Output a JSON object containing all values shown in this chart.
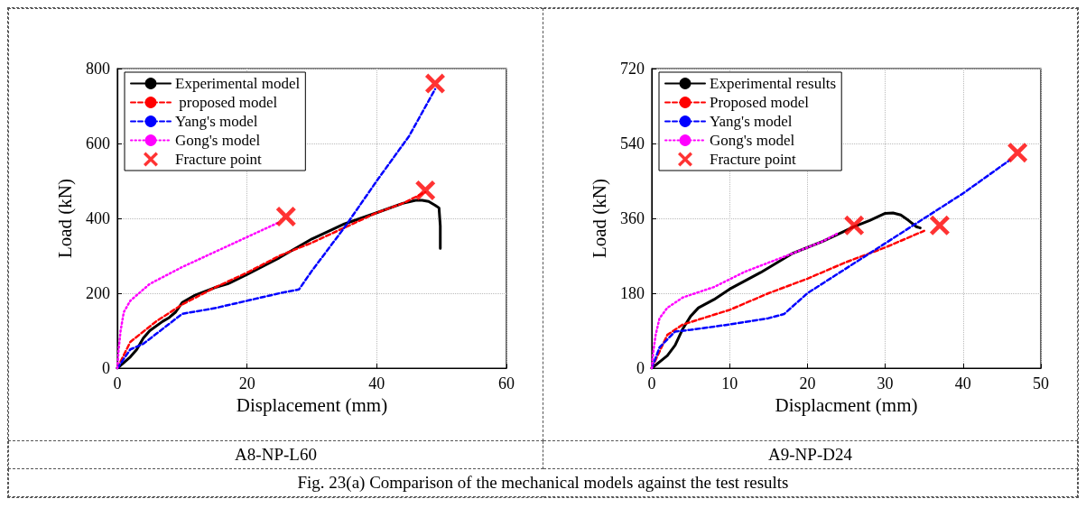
{
  "chart_data": [
    {
      "type": "line",
      "title": "A8-NP-L60",
      "xlabel": "Displacement (mm)",
      "ylabel": "Load (kN)",
      "xlim": [
        0,
        60
      ],
      "xticks": [
        0,
        20,
        40,
        60
      ],
      "ylim": [
        0,
        800
      ],
      "yticks": [
        0,
        200,
        400,
        600,
        800
      ],
      "grid": true,
      "legend": "top left",
      "annotations": [
        "Fig. 23(a) Comparison of the mechanical models against the test results"
      ],
      "series": [
        {
          "name": "Experimental model",
          "color": "#000000",
          "line_style": "solid",
          "x": [
            0,
            1,
            2,
            3,
            4,
            5,
            7,
            8,
            9,
            10,
            12,
            15,
            17,
            20,
            25,
            30,
            35,
            40,
            44,
            46,
            47,
            48,
            49,
            49.6,
            49.8,
            49.8
          ],
          "values": [
            0,
            15,
            30,
            50,
            80,
            100,
            125,
            135,
            150,
            175,
            195,
            215,
            225,
            250,
            295,
            345,
            385,
            415,
            440,
            448,
            448,
            445,
            435,
            428,
            380,
            320
          ]
        },
        {
          "name": " proposed model",
          "color": "#ff0000",
          "line_style": "dashed",
          "x": [
            0,
            2,
            6,
            10,
            15,
            20,
            25,
            30,
            35,
            40,
            44,
            47.5
          ],
          "values": [
            0,
            70,
            125,
            170,
            215,
            255,
            300,
            335,
            375,
            415,
            440,
            470
          ]
        },
        {
          "name": "Yang's model",
          "color": "#0000ff",
          "line_style": "dashed",
          "x": [
            0,
            2,
            4,
            10,
            15,
            20,
            25,
            28,
            30,
            35,
            40,
            45,
            49
          ],
          "values": [
            0,
            50,
            65,
            145,
            160,
            180,
            200,
            210,
            260,
            375,
            500,
            620,
            745
          ]
        },
        {
          "name": "Gong's model",
          "color": "#ff00ff",
          "line_style": "dotted",
          "x": [
            0,
            0.2,
            0.5,
            1,
            2,
            5,
            10,
            15,
            20,
            25
          ],
          "values": [
            0,
            50,
            100,
            150,
            180,
            225,
            270,
            310,
            350,
            390
          ]
        },
        {
          "name": "Fracture point",
          "type": "scatter",
          "marker": "cross",
          "color": "#ff0000",
          "x": [
            26,
            47.5,
            49
          ],
          "values": [
            405,
            475,
            760
          ]
        }
      ]
    },
    {
      "type": "line",
      "title": "A9-NP-D24",
      "xlabel": "Displacment (mm)",
      "ylabel": "Load (kN)",
      "xlim": [
        0,
        50
      ],
      "xticks": [
        0,
        10,
        20,
        30,
        40,
        50
      ],
      "ylim": [
        0,
        720
      ],
      "yticks": [
        0,
        180,
        360,
        540,
        720
      ],
      "grid": true,
      "legend": "top left",
      "series": [
        {
          "name": "Experimental results",
          "color": "#000000",
          "line_style": "solid",
          "x": [
            0,
            1,
            2,
            3,
            4,
            5,
            6,
            8,
            10,
            14,
            18,
            22,
            26,
            28,
            30,
            31,
            32,
            33,
            34,
            34.5
          ],
          "values": [
            0,
            15,
            30,
            55,
            95,
            125,
            145,
            165,
            190,
            230,
            275,
            305,
            340,
            355,
            372,
            373,
            368,
            355,
            340,
            337
          ]
        },
        {
          "name": "Proposed model",
          "color": "#ff0000",
          "line_style": "dashed",
          "x": [
            0,
            2,
            4,
            10,
            15,
            20,
            25,
            30,
            35
          ],
          "values": [
            0,
            80,
            105,
            140,
            180,
            215,
            255,
            290,
            330
          ]
        },
        {
          "name": "Yang's model",
          "color": "#0000ff",
          "line_style": "dashed",
          "x": [
            0,
            1,
            3,
            5,
            10,
            15,
            17,
            20,
            25,
            30,
            35,
            40,
            46
          ],
          "values": [
            0,
            50,
            88,
            92,
            105,
            120,
            130,
            180,
            240,
            300,
            360,
            420,
            500
          ]
        },
        {
          "name": "Gong's model",
          "color": "#ff00ff",
          "line_style": "dotted",
          "x": [
            0,
            0.2,
            0.5,
            1,
            2,
            4,
            8,
            12,
            18,
            22,
            24
          ],
          "values": [
            0,
            40,
            80,
            120,
            145,
            170,
            195,
            232,
            275,
            305,
            325
          ]
        },
        {
          "name": "Fracture point",
          "type": "scatter",
          "marker": "cross",
          "color": "#ff0000",
          "x": [
            26,
            37,
            47
          ],
          "values": [
            343,
            343,
            518
          ]
        }
      ]
    }
  ]
}
